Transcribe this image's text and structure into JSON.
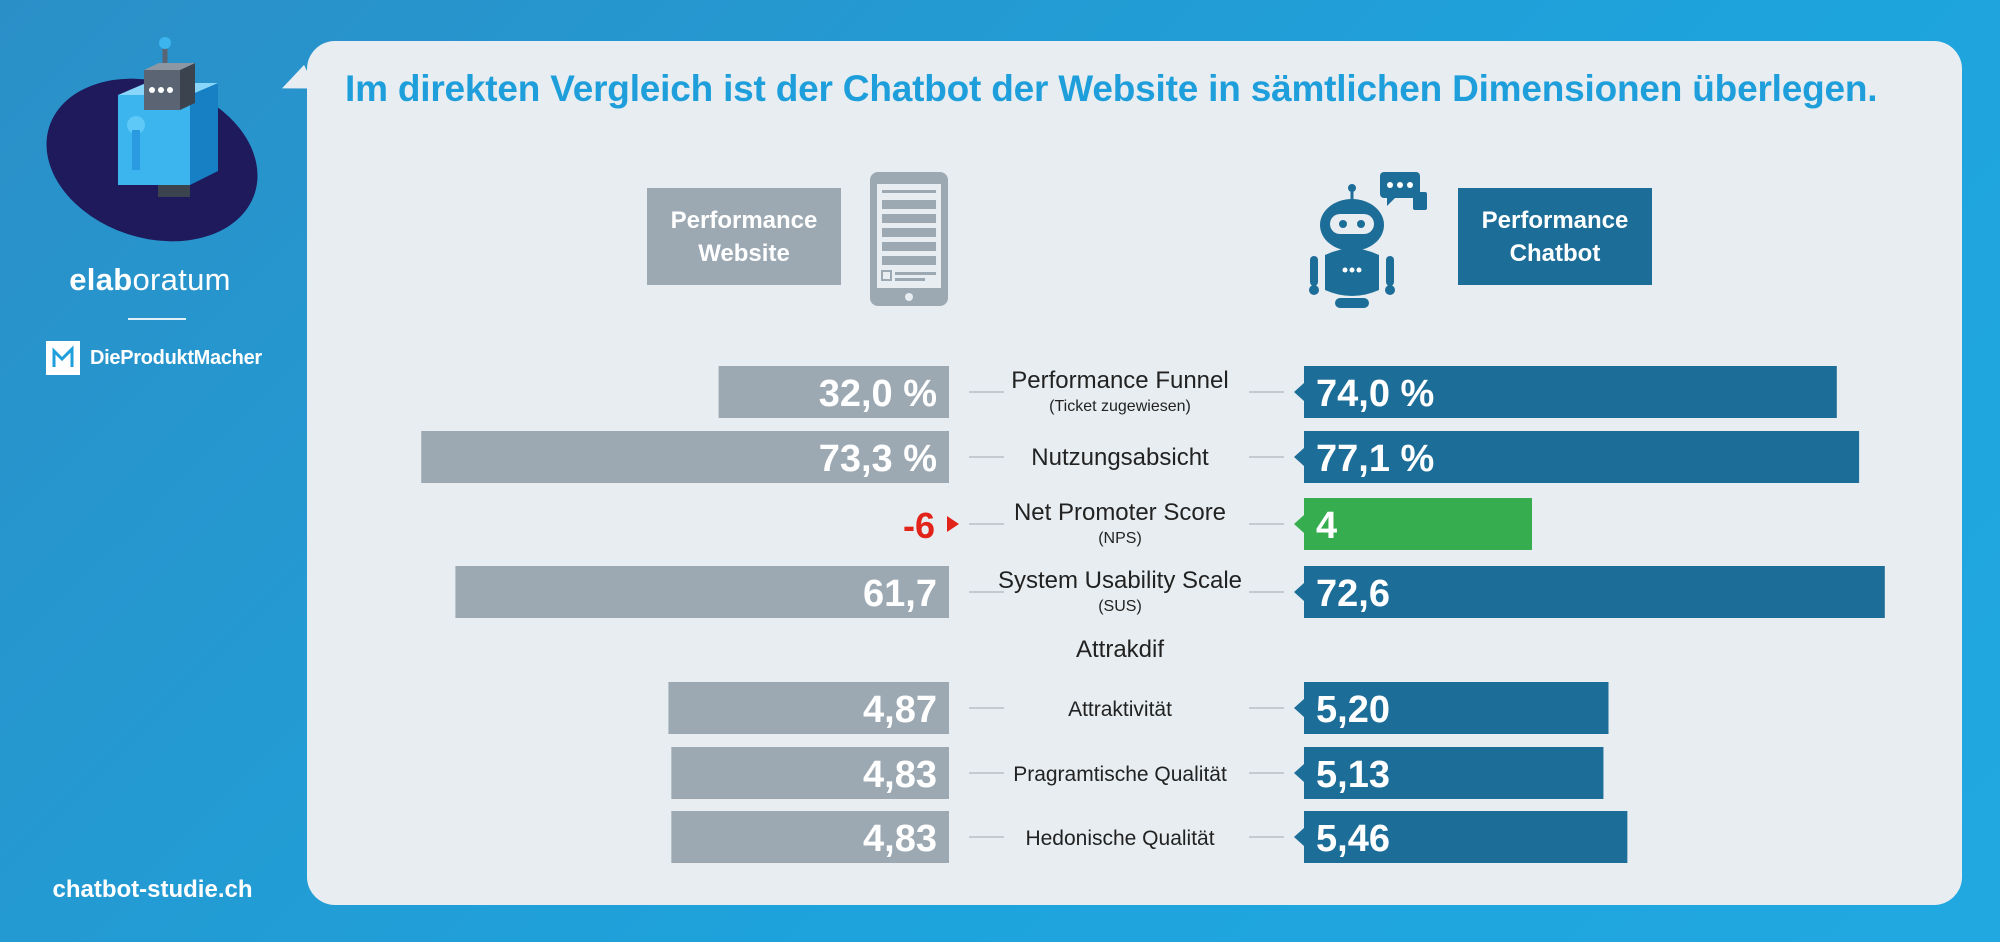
{
  "sidebar": {
    "brand_bold": "elab",
    "brand_rest": "oratum",
    "partner": "DieProduktMacher",
    "website": "chatbot-studie.ch"
  },
  "headline": "Im direkten Vergleich ist der Chatbot der Website in sämtlichen Dimensionen überlegen.",
  "headers": {
    "website_line1": "Performance",
    "website_line2": "Website",
    "chatbot_line1": "Performance",
    "chatbot_line2": "Chatbot"
  },
  "colors": {
    "website": "#9ca9b3",
    "chatbot": "#1d6d99",
    "nps_chatbot": "#36ad4f",
    "nps_website_text": "#e2231a",
    "headline": "#1e9fdb"
  },
  "chart_data": {
    "type": "bar",
    "orientation": "horizontal-diverging",
    "series": [
      {
        "name": "Performance Website",
        "values": [
          32.0,
          73.3,
          -6,
          61.7,
          4.87,
          4.83,
          4.83
        ],
        "labels": [
          "32,0 %",
          "73,3 %",
          "-6",
          "61,7",
          "4,87",
          "4,83",
          "4,83"
        ]
      },
      {
        "name": "Performance Chatbot",
        "values": [
          74.0,
          77.1,
          4,
          72.6,
          5.2,
          5.13,
          5.46
        ],
        "labels": [
          "74,0 %",
          "77,1 %",
          "4",
          "72,6",
          "5,20",
          "5,13",
          "5,46"
        ]
      }
    ],
    "categories": [
      {
        "label": "Performance Funnel",
        "sub": "(Ticket zugewiesen)"
      },
      {
        "label": "Nutzungsabsicht",
        "sub": ""
      },
      {
        "label": "Net Promoter Score",
        "sub": "(NPS)"
      },
      {
        "label": "System Usability Scale",
        "sub": "(SUS)"
      },
      {
        "label": "Attraktivität",
        "sub": ""
      },
      {
        "label": "Pragramtische Qualität",
        "sub": ""
      },
      {
        "label": "Hedonische Qualität",
        "sub": ""
      }
    ],
    "group_heading": "Attrakdif"
  }
}
